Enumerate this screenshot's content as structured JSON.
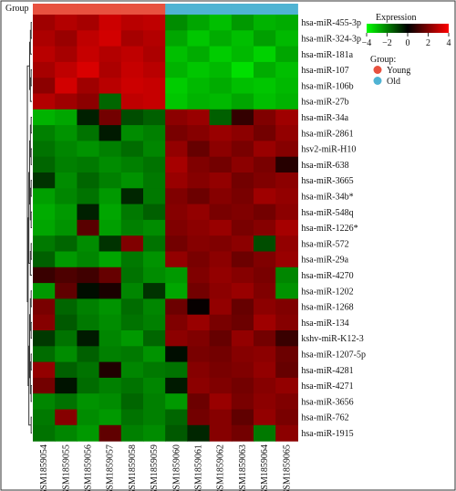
{
  "chart_data": {
    "type": "heatmap",
    "group_label": "Group",
    "samples": [
      "GSM1859054",
      "GSM1859055",
      "GSM1859056",
      "GSM1859057",
      "GSM1859058",
      "GSM1859059",
      "GSM1859060",
      "GSM1859061",
      "GSM1859062",
      "GSM1859063",
      "GSM1859064",
      "GSM1859065"
    ],
    "sample_groups": [
      "Young",
      "Young",
      "Young",
      "Young",
      "Young",
      "Young",
      "Old",
      "Old",
      "Old",
      "Old",
      "Old",
      "Old"
    ],
    "genes": [
      "hsa-miR-455-3p",
      "hsa-miR-324-3p",
      "hsa-miR-181a",
      "hsa-miR-107",
      "hsa-miR-106b",
      "hsa-miR-27b",
      "hsa-miR-34a",
      "hsa-miR-2861",
      "hsv2-miR-H10",
      "hsa-miR-638",
      "hsa-miR-3665",
      "hsa-miR-34b*",
      "hsa-miR-548q",
      "hsa-miR-1226*",
      "hsa-miR-572",
      "hsa-miR-29a",
      "hsa-miR-4270",
      "hsa-miR-1202",
      "hsa-miR-1268",
      "hsa-miR-134",
      "kshv-miR-K12-3",
      "hsa-miR-1207-5p",
      "hsa-miR-4281",
      "hsa-miR-4271",
      "hsa-miR-3656",
      "hsa-miR-762",
      "hsa-miR-1915"
    ],
    "values": [
      [
        2.5,
        2.8,
        2.6,
        3.2,
        2.9,
        3.0,
        -2.2,
        -2.6,
        -3.0,
        -2.4,
        -2.8,
        -2.7
      ],
      [
        2.7,
        2.4,
        3.0,
        3.3,
        2.6,
        2.8,
        -2.6,
        -3.1,
        -2.7,
        -3.0,
        -2.5,
        -2.9
      ],
      [
        2.9,
        2.6,
        3.1,
        2.8,
        3.0,
        2.7,
        -3.0,
        -2.7,
        -3.2,
        -2.9,
        -3.3,
        -2.6
      ],
      [
        2.6,
        3.0,
        3.4,
        2.7,
        3.1,
        2.9,
        -2.8,
        -3.1,
        -2.9,
        -3.5,
        -2.7,
        -3.0
      ],
      [
        2.2,
        3.3,
        2.5,
        2.9,
        3.2,
        3.1,
        -3.2,
        -2.9,
        -2.7,
        -3.0,
        -3.1,
        -2.9
      ],
      [
        2.8,
        2.5,
        2.2,
        -1.6,
        3.0,
        3.1,
        -3.1,
        -2.8,
        -2.9,
        -2.6,
        -3.0,
        -2.8
      ],
      [
        -2.8,
        -2.6,
        -0.5,
        1.8,
        -1.2,
        -1.5,
        2.2,
        2.4,
        -1.5,
        0.8,
        2.0,
        2.5
      ],
      [
        -2.0,
        -2.3,
        -1.8,
        -0.4,
        -2.2,
        -2.0,
        1.9,
        2.1,
        2.4,
        2.2,
        1.8,
        2.3
      ],
      [
        -1.8,
        -2.1,
        -2.3,
        -2.0,
        -1.7,
        -2.1,
        2.3,
        1.6,
        2.2,
        1.9,
        2.4,
        2.1
      ],
      [
        -1.6,
        -2.0,
        -1.9,
        -2.2,
        -2.0,
        -1.8,
        2.6,
        2.0,
        1.8,
        2.2,
        1.9,
        0.6
      ],
      [
        -0.8,
        -2.2,
        -1.6,
        -2.0,
        -2.3,
        -1.9,
        2.4,
        2.1,
        2.3,
        1.8,
        2.0,
        2.2
      ],
      [
        -2.5,
        -2.1,
        -1.8,
        -2.4,
        -0.6,
        -1.9,
        2.0,
        1.7,
        2.1,
        1.9,
        2.5,
        2.3
      ],
      [
        -2.7,
        -2.4,
        -0.5,
        -2.6,
        -1.9,
        -1.5,
        2.1,
        2.3,
        1.9,
        2.0,
        1.8,
        2.2
      ],
      [
        -2.6,
        -2.3,
        1.4,
        -2.5,
        -2.0,
        -2.2,
        2.0,
        2.2,
        2.4,
        1.9,
        2.1,
        2.6
      ],
      [
        -1.9,
        -1.6,
        -2.2,
        -0.8,
        2.0,
        -1.8,
        1.8,
        2.1,
        2.0,
        2.2,
        -1.2,
        2.3
      ],
      [
        -1.5,
        -2.4,
        -2.1,
        -2.6,
        -1.9,
        -2.3,
        2.3,
        1.9,
        2.2,
        1.7,
        2.0,
        2.4
      ],
      [
        0.9,
        1.2,
        1.0,
        1.6,
        -1.8,
        -2.2,
        -2.4,
        2.0,
        2.3,
        2.1,
        1.9,
        -2.1
      ],
      [
        -2.4,
        1.5,
        -0.2,
        0.4,
        -2.1,
        -0.8,
        -2.6,
        1.8,
        2.2,
        2.4,
        2.0,
        -2.3
      ],
      [
        1.9,
        -1.6,
        -2.0,
        -2.3,
        -1.7,
        -2.1,
        1.7,
        0.1,
        2.3,
        1.6,
        2.2,
        2.0
      ],
      [
        2.1,
        -1.4,
        -1.9,
        -2.2,
        -1.8,
        -2.0,
        2.0,
        2.4,
        1.9,
        1.7,
        2.5,
        2.1
      ],
      [
        -0.9,
        -1.8,
        -0.4,
        -2.1,
        -2.4,
        -1.6,
        2.2,
        2.0,
        1.6,
        2.3,
        1.8,
        0.9
      ],
      [
        -1.7,
        -2.2,
        -1.5,
        -2.0,
        -1.9,
        -2.3,
        -0.2,
        1.9,
        1.8,
        2.1,
        2.2,
        1.7
      ],
      [
        2.3,
        -1.5,
        -1.8,
        0.5,
        -2.1,
        -1.9,
        -1.8,
        2.1,
        1.9,
        2.0,
        2.3,
        1.6
      ],
      [
        1.8,
        -0.3,
        -1.7,
        -2.0,
        -1.8,
        -2.1,
        -0.4,
        2.2,
        2.0,
        1.8,
        2.1,
        2.3
      ],
      [
        -2.1,
        -1.8,
        -2.3,
        -2.2,
        -1.6,
        -2.0,
        -2.4,
        1.7,
        2.4,
        1.9,
        2.2,
        2.0
      ],
      [
        -1.9,
        2.1,
        -2.2,
        -2.4,
        -1.8,
        -2.0,
        -1.6,
        1.8,
        2.1,
        1.5,
        2.3,
        1.9
      ],
      [
        -1.8,
        -2.1,
        -2.4,
        1.5,
        -2.0,
        -2.2,
        -1.4,
        -0.6,
        2.1,
        1.8,
        -1.9,
        2.2
      ]
    ],
    "legend": {
      "title": "Expression",
      "ticks": [
        -4,
        -2,
        0,
        2,
        4
      ],
      "tick_labels": [
        "−4",
        "−2",
        "0",
        "2",
        "4"
      ],
      "group_title": "Group:",
      "groups": [
        {
          "name": "Young",
          "color": "#e8513f"
        },
        {
          "name": "Old",
          "color": "#4fb3d3"
        }
      ]
    },
    "colors": {
      "low": "#00ff00",
      "mid": "#000000",
      "high": "#ff0000"
    },
    "dendrogram_side": "left",
    "vmin": -4,
    "vmax": 4
  }
}
